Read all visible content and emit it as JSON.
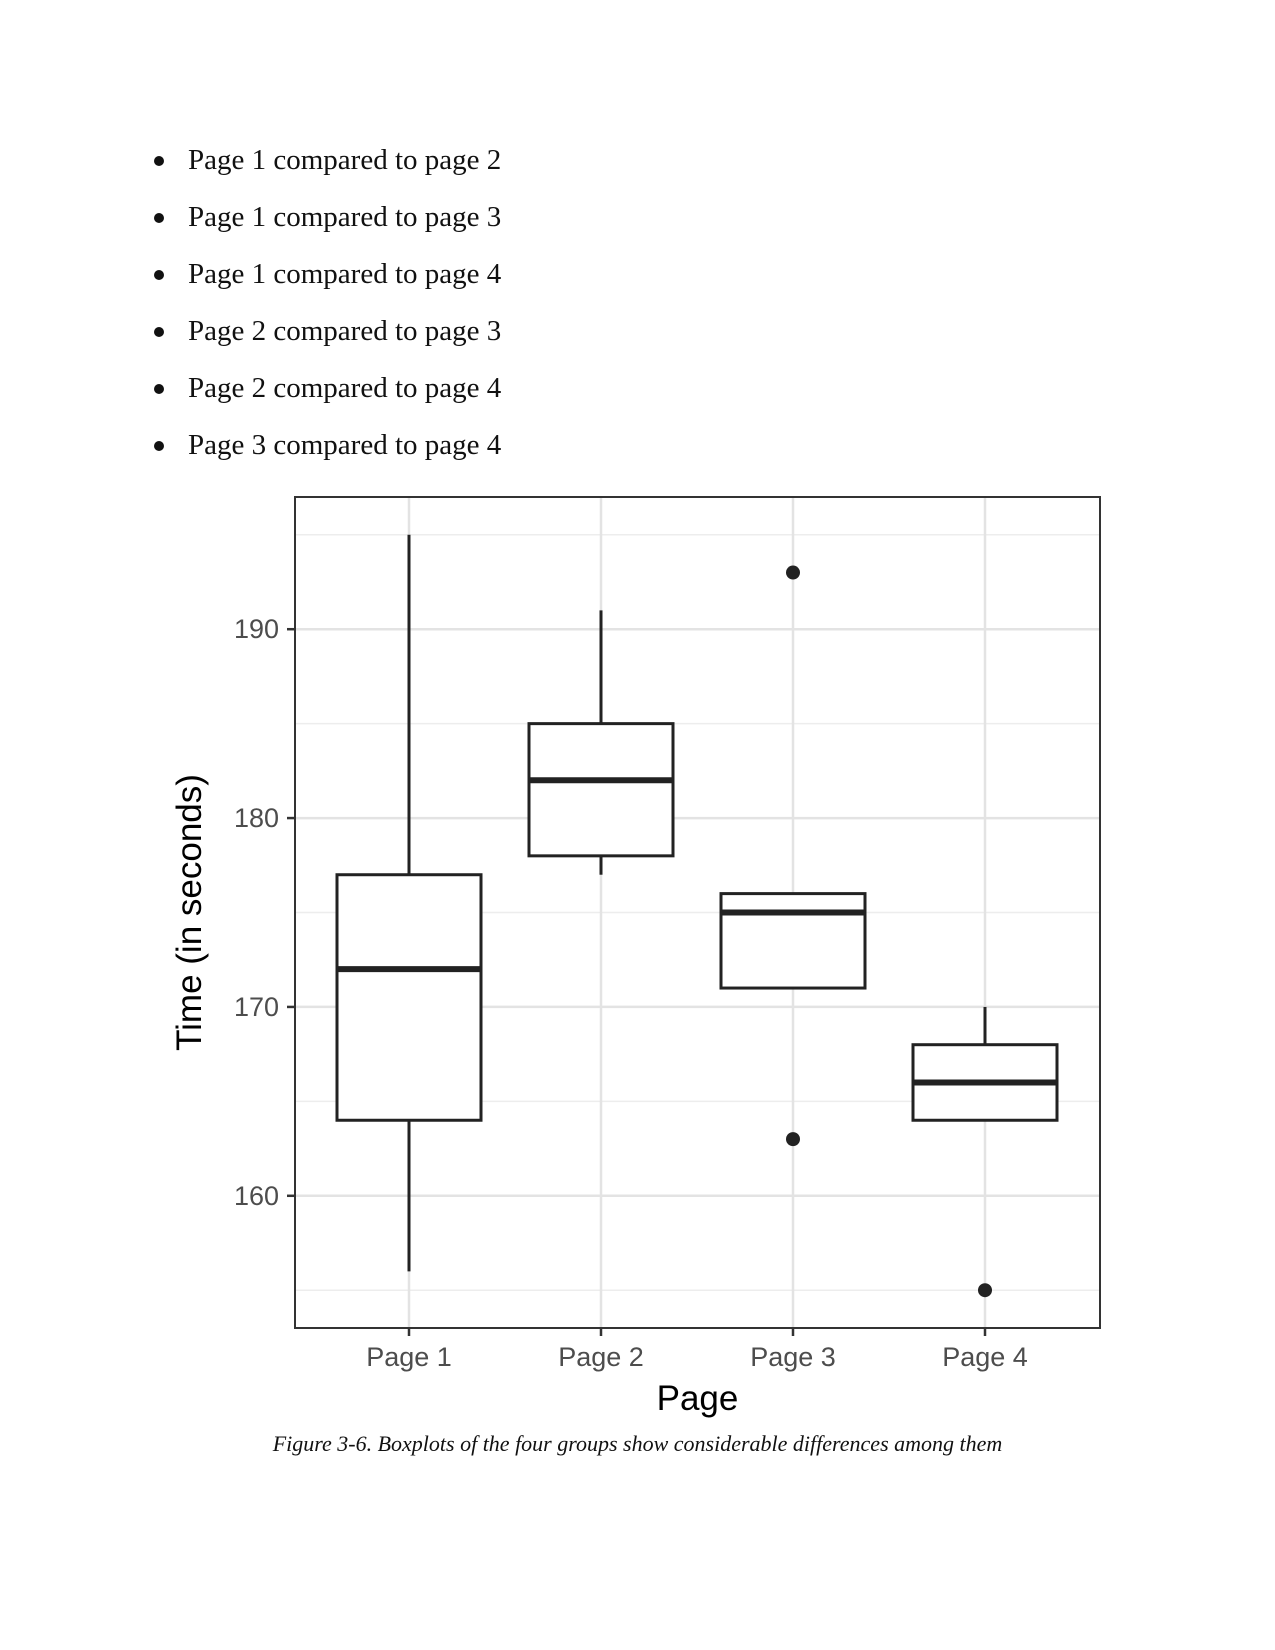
{
  "bullets": [
    "Page 1 compared to page 2",
    "Page 1 compared to page 3",
    "Page 1 compared to page 4",
    "Page 2 compared to page 3",
    "Page 2 compared to page 4",
    "Page 3 compared to page 4"
  ],
  "chart_data": {
    "type": "boxplot",
    "xlabel": "Page",
    "ylabel": "Time (in seconds)",
    "categories": [
      "Page 1",
      "Page 2",
      "Page 3",
      "Page 4"
    ],
    "yticks": [
      160,
      170,
      180,
      190
    ],
    "ylim": [
      153,
      197
    ],
    "grid": true,
    "boxes": [
      {
        "category": "Page 1",
        "whisker_low": 156,
        "q1": 164,
        "median": 172,
        "q3": 177,
        "whisker_high": 195,
        "outliers": []
      },
      {
        "category": "Page 2",
        "whisker_low": 177,
        "q1": 178,
        "median": 182,
        "q3": 185,
        "whisker_high": 191,
        "outliers": []
      },
      {
        "category": "Page 3",
        "whisker_low": 171,
        "q1": 171,
        "median": 175,
        "q3": 176,
        "whisker_high": 176,
        "outliers": [
          163,
          193
        ]
      },
      {
        "category": "Page 4",
        "whisker_low": 164,
        "q1": 164,
        "median": 166,
        "q3": 168,
        "whisker_high": 170,
        "outliers": [
          155
        ]
      }
    ]
  },
  "caption": "Figure 3-6. Boxplots of the four groups show considerable differences among them"
}
